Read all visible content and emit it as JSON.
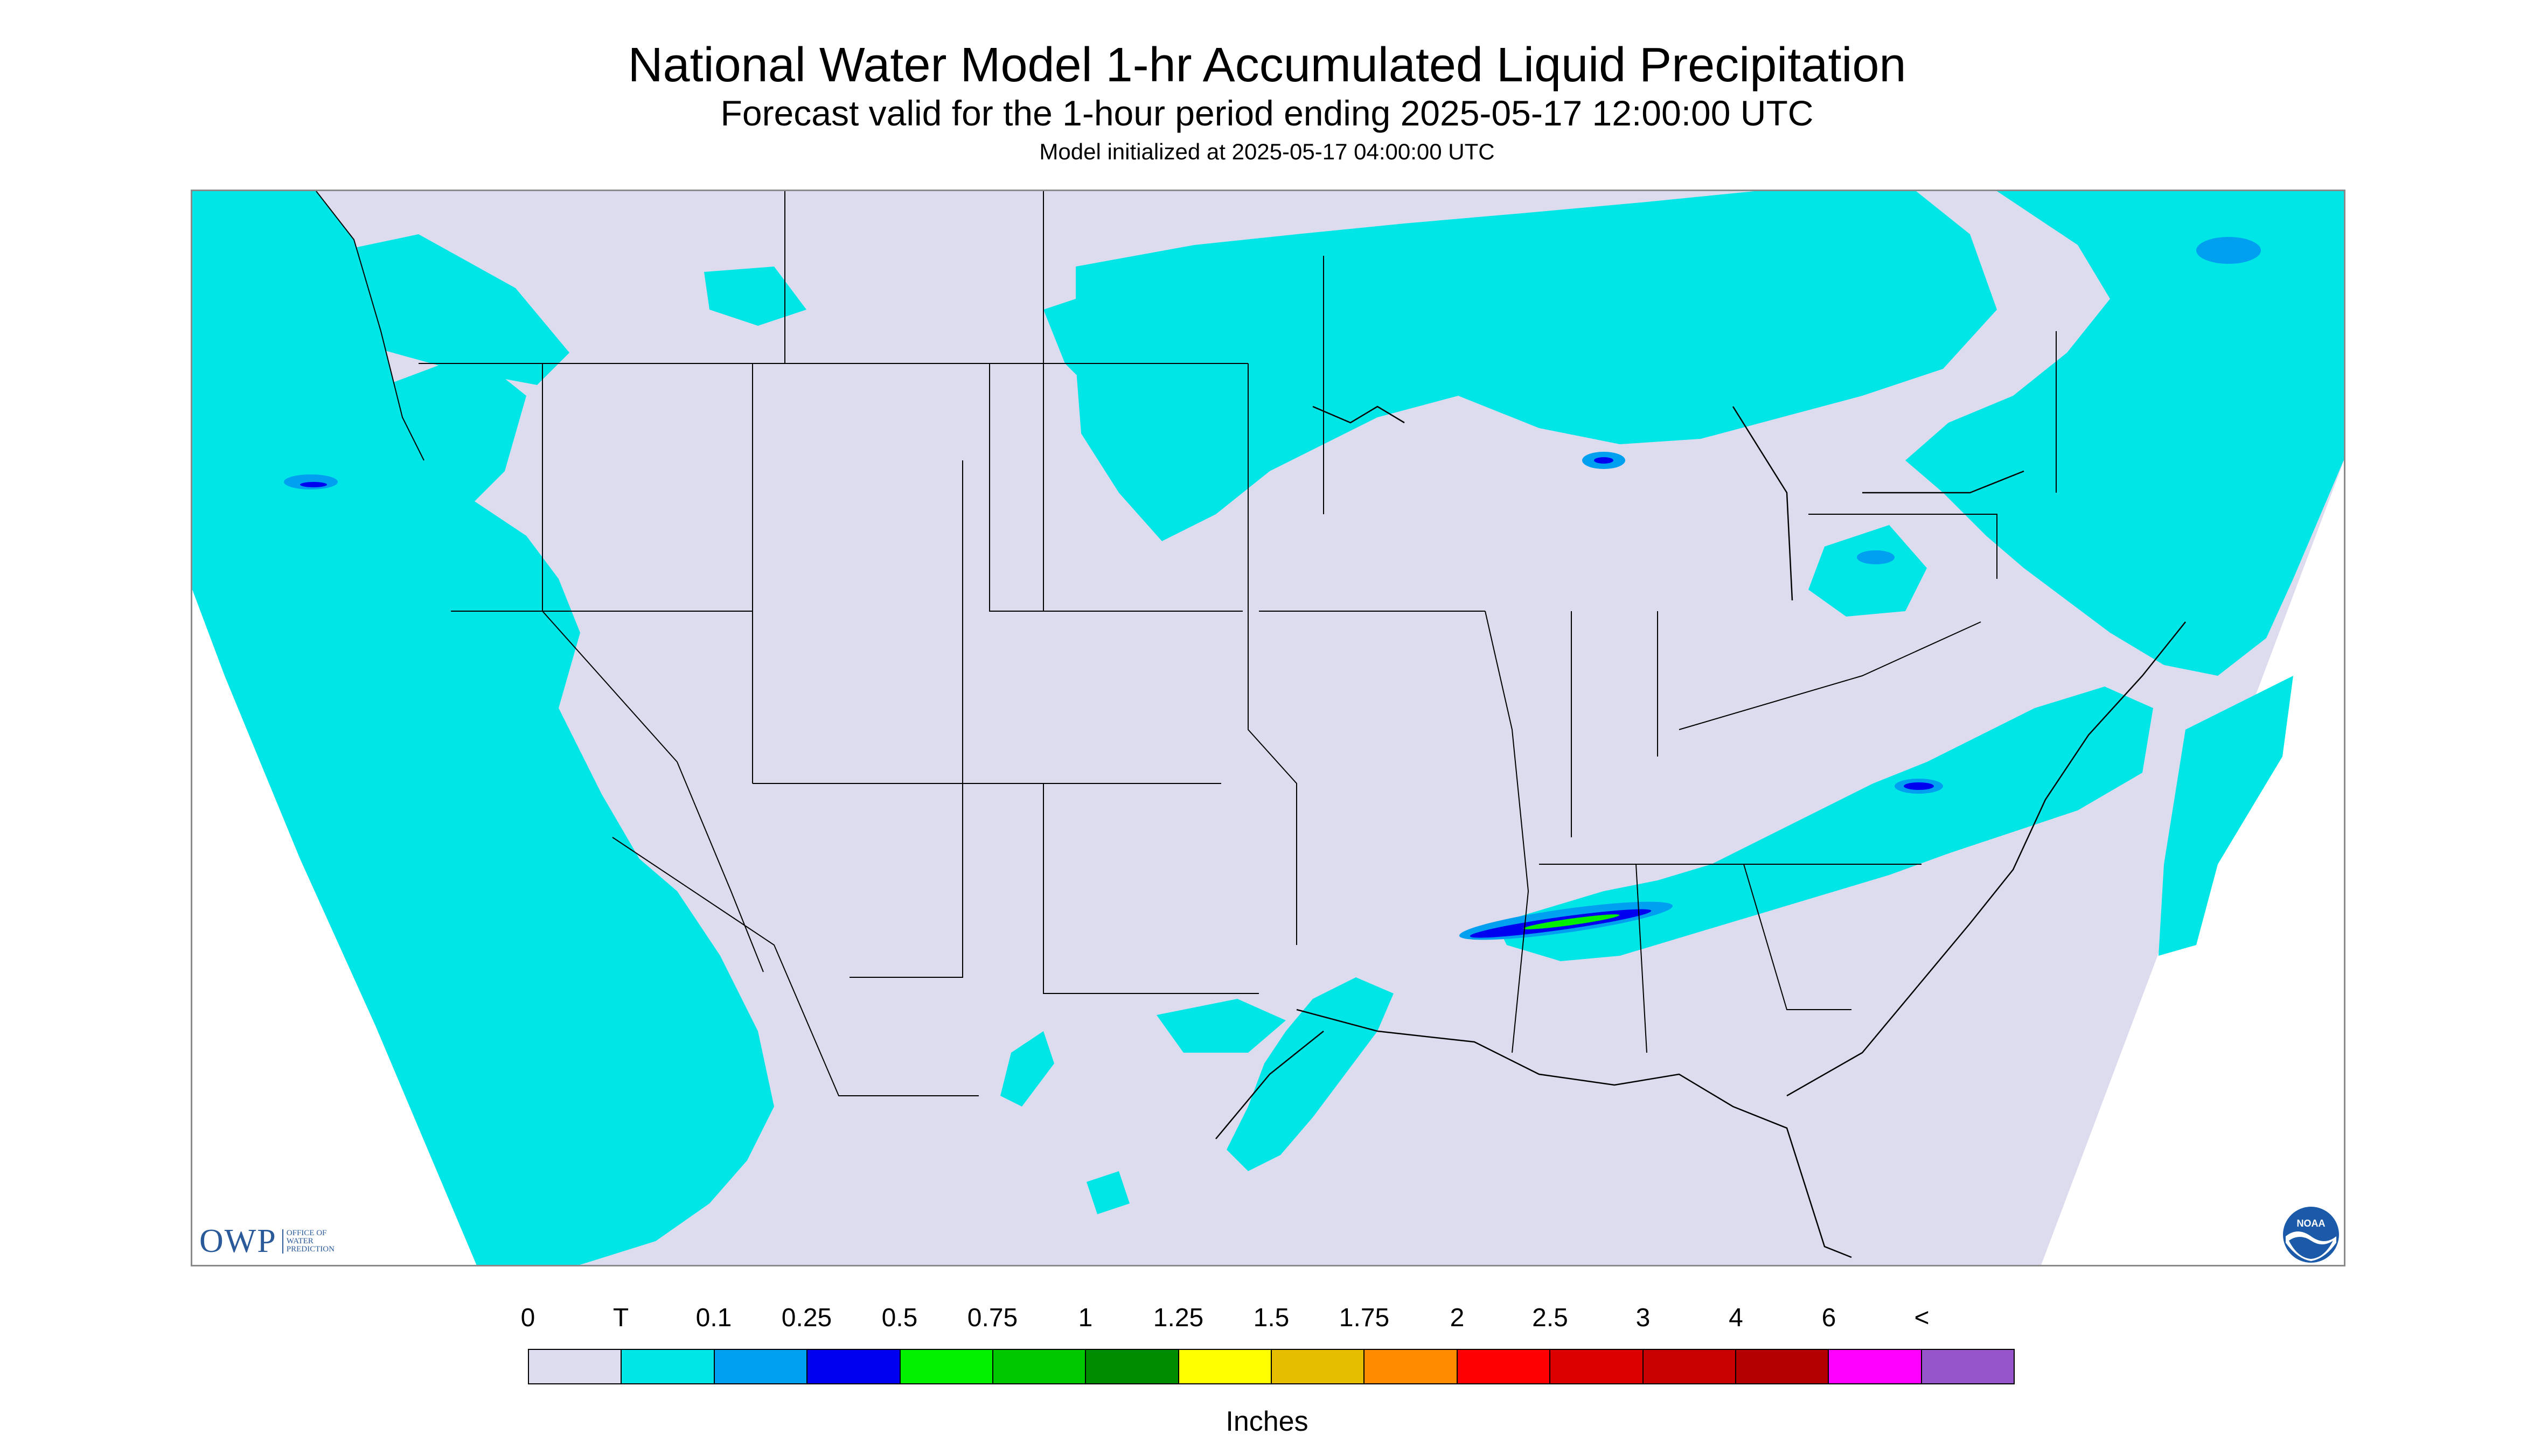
{
  "header": {
    "title": "National Water Model 1-hr Accumulated Liquid Precipitation",
    "subtitle": "Forecast valid for the 1-hour period ending 2025-05-17 12:00:00 UTC",
    "init_line": "Model initialized at 2025-05-17 04:00:00 UTC"
  },
  "logos": {
    "owp": {
      "letters": "OWP",
      "line1": "OFFICE OF",
      "line2": "WATER",
      "line3": "PREDICTION"
    },
    "noaa": {
      "text": "NOAA"
    }
  },
  "colors": {
    "background": "#dcdcee",
    "trace": "#00e6e6",
    "light_blue": "#00a0f0",
    "blue": "#0000f0",
    "green": "#00f000",
    "border": "#000000"
  },
  "legend": {
    "units": "Inches",
    "tick_labels": [
      "0",
      "T",
      "0.1",
      "0.25",
      "0.5",
      "0.75",
      "1",
      "1.25",
      "1.5",
      "1.75",
      "2",
      "2.5",
      "3",
      "4",
      "6",
      "<"
    ],
    "swatch_colors": [
      "#dcdcee",
      "#00e6e6",
      "#00a0f0",
      "#0000f0",
      "#00f000",
      "#00c800",
      "#008c00",
      "#ffff00",
      "#e6be00",
      "#ff8c00",
      "#ff0000",
      "#dc0000",
      "#c80000",
      "#b40000",
      "#ff00ff",
      "#9655c8"
    ]
  }
}
